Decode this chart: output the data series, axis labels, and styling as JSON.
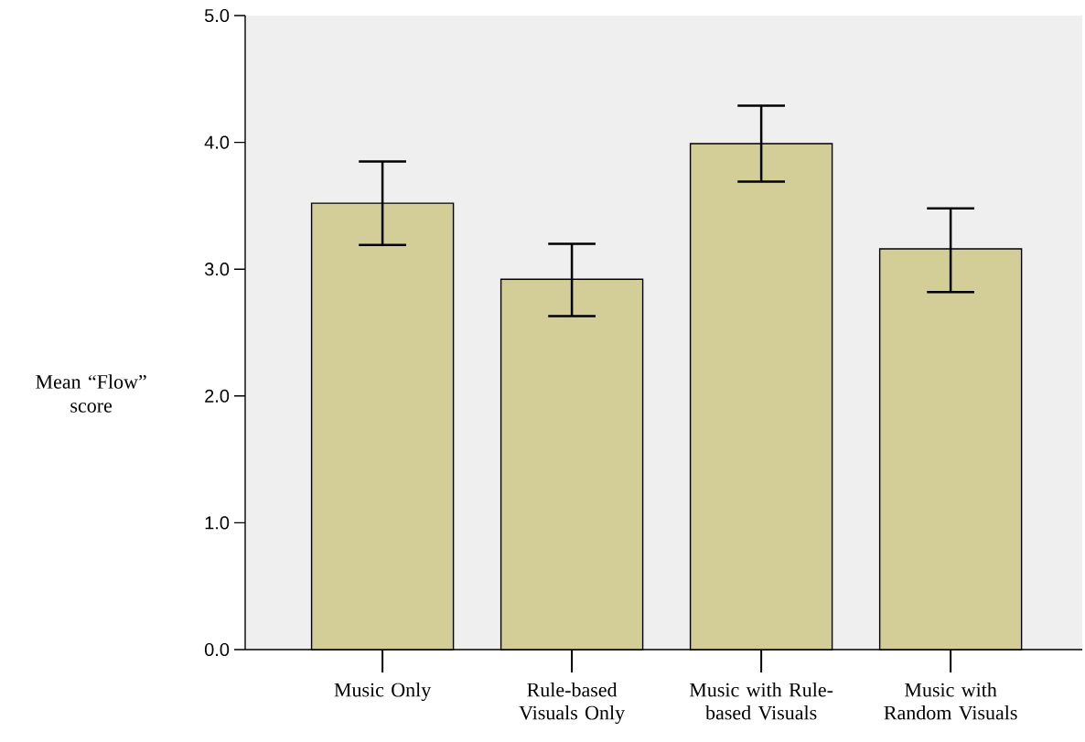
{
  "chart_data": {
    "type": "bar",
    "ylabel": "Mean “Flow” score",
    "categories": [
      "Music Only",
      "Rule-based Visuals Only",
      "Music with Rule-based Visuals",
      "Music with Random Visuals"
    ],
    "values": [
      3.52,
      2.92,
      3.99,
      3.16
    ],
    "errors": [
      [
        3.19,
        3.85
      ],
      [
        2.63,
        3.2
      ],
      [
        3.69,
        4.29
      ],
      [
        2.82,
        3.48
      ]
    ],
    "color": "#d3ce98",
    "ylim": [
      0,
      5
    ],
    "yticks": [
      {
        "value": 0,
        "label": "0.0"
      },
      {
        "value": 1,
        "label": "1.0"
      },
      {
        "value": 2,
        "label": "2.0"
      },
      {
        "value": 3,
        "label": "3.0"
      },
      {
        "value": 4,
        "label": "4.0"
      },
      {
        "value": 5,
        "label": "5.0"
      }
    ]
  }
}
